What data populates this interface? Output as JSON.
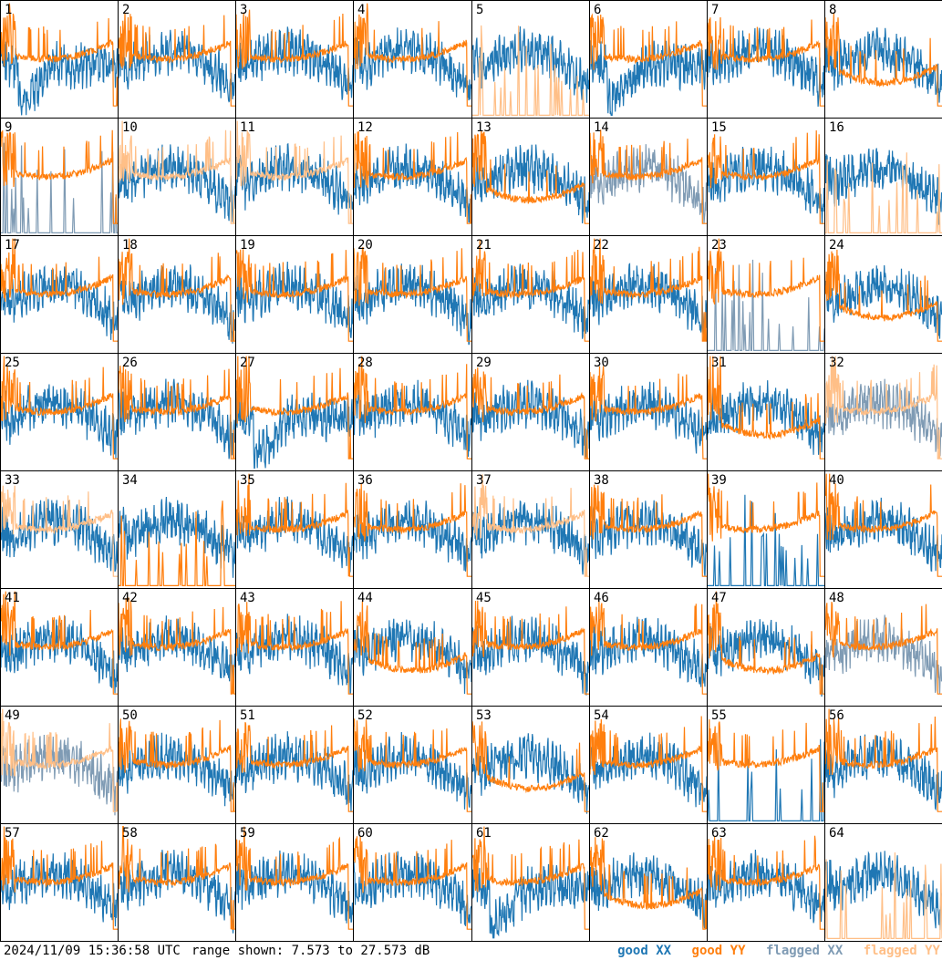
{
  "chart_data": {
    "type": "line",
    "panels": [
      "1",
      "2",
      "3",
      "4",
      "5",
      "6",
      "7",
      "8",
      "9",
      "10",
      "11",
      "12",
      "13",
      "14",
      "15",
      "16",
      "17",
      "18",
      "19",
      "20",
      "21",
      "22",
      "23",
      "24",
      "25",
      "26",
      "27",
      "28",
      "29",
      "30",
      "31",
      "32",
      "33",
      "34",
      "35",
      "36",
      "37",
      "38",
      "39",
      "40",
      "41",
      "42",
      "43",
      "44",
      "45",
      "46",
      "47",
      "48",
      "49",
      "50",
      "51",
      "52",
      "53",
      "54",
      "55",
      "56",
      "57",
      "58",
      "59",
      "60",
      "61",
      "62",
      "63",
      "64"
    ],
    "grid": {
      "rows": 8,
      "cols": 8
    },
    "series": [
      {
        "name": "good XX",
        "color": "#1f77b4"
      },
      {
        "name": "good YY",
        "color": "#ff7f0e"
      },
      {
        "name": "flagged XX",
        "color": "#7f9bb4"
      },
      {
        "name": "flagged YY",
        "color": "#ffbf87"
      }
    ],
    "ylim": [
      7.573,
      27.573
    ],
    "yunit": "dB",
    "panel_styles": {
      "1": "dipXX",
      "5": "spikyYYflag",
      "6": "dipXX",
      "8": "dipYY",
      "9": "flagXXspikes",
      "10": "flaggedYY",
      "11": "flaggedYY",
      "13": "dipYY",
      "14": "flaggedXX",
      "16": "spikyYYflag",
      "23": "flagXXnoise",
      "24": "dipYY",
      "25": "flatYY",
      "27": "dipXX",
      "31": "dipYY",
      "32": "flaggedBoth",
      "33": "flaggedYY",
      "34": "spikyYY",
      "37": "flaggedYY",
      "39": "spikyXX",
      "44": "dipYY",
      "47": "dipYY",
      "48": "flaggedXX",
      "49": "flaggedBoth",
      "53": "dipYY",
      "55": "spikyXX",
      "61": "dipXX",
      "62": "dipYY",
      "64": "spikyYYflag"
    }
  },
  "footer": {
    "timestamp": "2024/11/09 15:36:58 UTC",
    "range_text": "range shown: 7.573 to 27.573 dB",
    "legend": {
      "good_xx": "good XX",
      "good_yy": "good YY",
      "flagged_xx": "flagged XX",
      "flagged_yy": "flagged YY"
    }
  },
  "colors": {
    "good_xx": "#1f77b4",
    "good_yy": "#ff7f0e",
    "flagged_xx": "#7f9bb4",
    "flagged_yy": "#ffbf87"
  }
}
